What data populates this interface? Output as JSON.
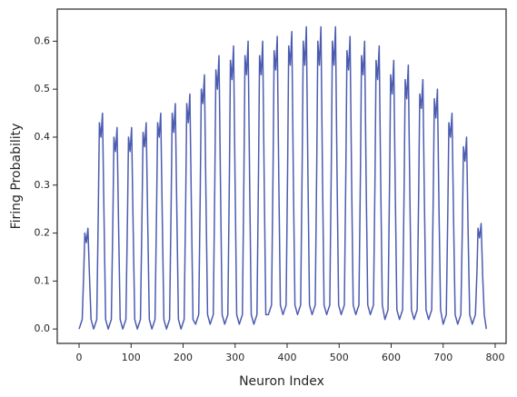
{
  "chart_data": {
    "type": "line",
    "xlabel": "Neuron Index",
    "ylabel": "Firing Probability",
    "x": [
      0,
      6,
      9,
      11,
      14,
      17,
      20,
      23,
      28,
      34,
      37,
      39,
      42,
      45,
      48,
      51,
      56,
      62,
      65,
      67,
      70,
      73,
      76,
      79,
      84,
      90,
      93,
      95,
      98,
      101,
      104,
      107,
      112,
      118,
      121,
      123,
      126,
      129,
      132,
      135,
      140,
      146,
      149,
      151,
      154,
      157,
      160,
      163,
      168,
      174,
      177,
      179,
      182,
      185,
      188,
      191,
      196,
      202,
      205,
      207,
      210,
      213,
      216,
      219,
      224,
      230,
      233,
      235,
      238,
      241,
      244,
      247,
      252,
      258,
      261,
      263,
      266,
      269,
      272,
      275,
      280,
      286,
      289,
      291,
      294,
      297,
      300,
      303,
      308,
      314,
      317,
      319,
      322,
      325,
      328,
      331,
      336,
      342,
      345,
      347,
      350,
      353,
      356,
      359,
      364,
      370,
      373,
      375,
      378,
      381,
      384,
      387,
      392,
      398,
      401,
      403,
      406,
      409,
      412,
      415,
      420,
      426,
      429,
      431,
      434,
      437,
      440,
      443,
      448,
      454,
      457,
      459,
      462,
      465,
      468,
      471,
      476,
      482,
      485,
      487,
      490,
      493,
      496,
      499,
      504,
      510,
      513,
      515,
      518,
      521,
      524,
      527,
      532,
      538,
      541,
      543,
      546,
      549,
      552,
      555,
      560,
      566,
      569,
      571,
      574,
      577,
      580,
      583,
      588,
      594,
      597,
      599,
      602,
      605,
      608,
      611,
      616,
      622,
      625,
      627,
      630,
      633,
      636,
      639,
      644,
      650,
      653,
      655,
      658,
      661,
      664,
      667,
      672,
      678,
      681,
      683,
      686,
      689,
      692,
      695,
      700,
      706,
      709,
      711,
      714,
      717,
      720,
      723,
      728,
      734,
      737,
      739,
      742,
      745,
      748,
      751,
      756,
      762,
      765,
      767,
      770,
      773,
      776,
      779,
      783
    ],
    "series": [
      {
        "name": "Firing Probability",
        "color": "#4c5cb0",
        "values": [
          0,
          0.02,
          0.12,
          0.2,
          0.18,
          0.21,
          0.11,
          0.02,
          0,
          0.02,
          0.25,
          0.43,
          0.4,
          0.45,
          0.23,
          0.02,
          0,
          0.02,
          0.23,
          0.4,
          0.37,
          0.42,
          0.21,
          0.02,
          0,
          0.02,
          0.23,
          0.4,
          0.37,
          0.42,
          0.21,
          0.02,
          0,
          0.02,
          0.24,
          0.41,
          0.38,
          0.43,
          0.22,
          0.02,
          0,
          0.02,
          0.25,
          0.43,
          0.4,
          0.45,
          0.23,
          0.02,
          0,
          0.02,
          0.26,
          0.45,
          0.41,
          0.47,
          0.24,
          0.02,
          0,
          0.02,
          0.27,
          0.47,
          0.43,
          0.49,
          0.25,
          0.02,
          0.01,
          0.03,
          0.29,
          0.5,
          0.47,
          0.53,
          0.27,
          0.03,
          0.01,
          0.03,
          0.31,
          0.54,
          0.5,
          0.57,
          0.29,
          0.03,
          0.01,
          0.03,
          0.32,
          0.56,
          0.52,
          0.59,
          0.3,
          0.03,
          0.01,
          0.03,
          0.33,
          0.57,
          0.53,
          0.6,
          0.3,
          0.03,
          0.01,
          0.03,
          0.33,
          0.57,
          0.53,
          0.6,
          0.3,
          0.03,
          0.03,
          0.05,
          0.34,
          0.58,
          0.54,
          0.61,
          0.31,
          0.05,
          0.03,
          0.05,
          0.34,
          0.59,
          0.55,
          0.62,
          0.31,
          0.05,
          0.03,
          0.05,
          0.35,
          0.6,
          0.55,
          0.63,
          0.32,
          0.05,
          0.03,
          0.05,
          0.35,
          0.6,
          0.55,
          0.63,
          0.32,
          0.05,
          0.03,
          0.05,
          0.35,
          0.6,
          0.55,
          0.63,
          0.32,
          0.05,
          0.03,
          0.05,
          0.34,
          0.58,
          0.54,
          0.61,
          0.31,
          0.05,
          0.03,
          0.05,
          0.33,
          0.57,
          0.53,
          0.6,
          0.3,
          0.05,
          0.03,
          0.05,
          0.32,
          0.56,
          0.52,
          0.59,
          0.3,
          0.05,
          0.02,
          0.04,
          0.31,
          0.53,
          0.49,
          0.56,
          0.28,
          0.04,
          0.02,
          0.04,
          0.3,
          0.52,
          0.48,
          0.55,
          0.28,
          0.04,
          0.02,
          0.04,
          0.29,
          0.49,
          0.46,
          0.52,
          0.26,
          0.04,
          0.02,
          0.04,
          0.28,
          0.48,
          0.44,
          0.5,
          0.25,
          0.04,
          0.01,
          0.03,
          0.25,
          0.43,
          0.4,
          0.45,
          0.23,
          0.03,
          0.01,
          0.03,
          0.22,
          0.38,
          0.35,
          0.4,
          0.2,
          0.03,
          0.01,
          0.03,
          0.12,
          0.21,
          0.19,
          0.22,
          0.11,
          0.03,
          0
        ]
      }
    ],
    "xlim": [
      -42,
      821
    ],
    "xticks": [
      0,
      100,
      200,
      300,
      400,
      500,
      600,
      700,
      800
    ],
    "ylim": [
      -0.03,
      0.667
    ],
    "yticks": [
      {
        "value": 0,
        "label": "0.0"
      },
      0.1,
      0.2,
      0.3,
      0.4,
      0.5,
      0.6
    ],
    "grid": false
  }
}
